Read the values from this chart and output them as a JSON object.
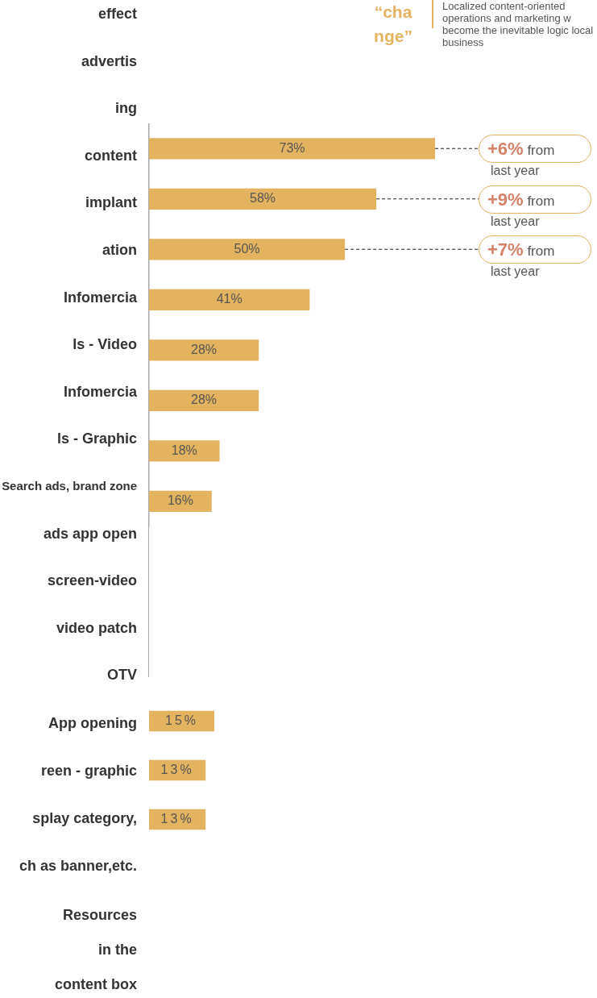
{
  "chart_data": [
    {
      "type": "bar",
      "orientation": "horizontal",
      "title": "“cha nge”",
      "categories": [
        null,
        null,
        null,
        null,
        null,
        null,
        null,
        null
      ],
      "values": [
        73,
        58,
        50,
        41,
        28,
        28,
        18,
        16
      ],
      "value_labels": [
        "73%",
        "58%",
        "50%",
        "41%",
        "28%",
        "28%",
        "18%",
        "16%"
      ],
      "color": "#e3b35f",
      "tick_labels": false,
      "grid": false,
      "legend": false,
      "annotations": [
        "effect",
        "advertis",
        "ing",
        "content",
        "implant",
        "ation",
        "Infomercia",
        "ls - Video",
        "Infomercia",
        "ls - Graphic",
        "Search ads, brand zone",
        "ads app open",
        "screen-video",
        "video patch",
        "OTV",
        "+6% from last year",
        "+9% from last year",
        "+7% from last year",
        "Localized content-oriented operations and marketing w become the inevitable logic local business"
      ]
    },
    {
      "type": "bar",
      "orientation": "horizontal",
      "categories": [
        null,
        null,
        null
      ],
      "values": [
        15,
        13,
        13
      ],
      "value_labels": [
        "15%",
        "13%",
        "13%"
      ],
      "color": "#e3b35f",
      "tick_labels": false,
      "grid": false,
      "legend": false,
      "annotations": [
        "App opening",
        "reen - graphic",
        "splay category,",
        "ch as banner,etc.",
        "Resources",
        "in the",
        "content box"
      ]
    }
  ]
}
